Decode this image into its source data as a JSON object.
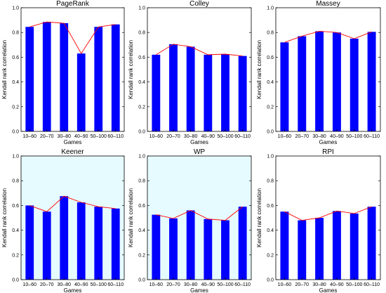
{
  "chart_data": [
    {
      "type": "bar",
      "title": "PageRank",
      "xlabel": "Games",
      "ylabel": "Kendall rank correlation",
      "ylim": [
        0,
        1.0
      ],
      "yticks": [
        "0.0",
        "0.2",
        "0.4",
        "0.6",
        "0.8",
        "1.0"
      ],
      "categories": [
        "10–60",
        "20–70",
        "30–80",
        "40–90",
        "50–100",
        "60–110"
      ],
      "values": [
        0.845,
        0.885,
        0.875,
        0.63,
        0.845,
        0.865
      ],
      "bar_color": "#0000ff",
      "line_color": "#ff0000",
      "gap_color": "#ffffff"
    },
    {
      "type": "bar",
      "title": "Colley",
      "xlabel": "Games",
      "ylabel": "Kendall rank correlation",
      "ylim": [
        0,
        1.0
      ],
      "yticks": [
        "0.0",
        "0.2",
        "0.4",
        "0.6",
        "0.8",
        "1.0"
      ],
      "categories": [
        "10–60",
        "20–70",
        "30–80",
        "40–90",
        "50–100",
        "60–110"
      ],
      "values": [
        0.62,
        0.705,
        0.685,
        0.62,
        0.625,
        0.61
      ],
      "bar_color": "#0000ff",
      "line_color": "#ff0000",
      "gap_color": "#ffffff"
    },
    {
      "type": "bar",
      "title": "Massey",
      "xlabel": "Games",
      "ylabel": "Kendall rank correlation",
      "ylim": [
        0,
        1.0
      ],
      "yticks": [
        "0.0",
        "0.2",
        "0.4",
        "0.6",
        "0.8",
        "1.0"
      ],
      "categories": [
        "10–60",
        "20–70",
        "30–80",
        "40–90",
        "50–100",
        "60–110"
      ],
      "values": [
        0.72,
        0.77,
        0.81,
        0.8,
        0.75,
        0.805
      ],
      "bar_color": "#0000ff",
      "line_color": "#ff0000",
      "gap_color": "#ffffff"
    },
    {
      "type": "bar",
      "title": "Keener",
      "xlabel": "Games",
      "ylabel": "Kendall rank correlation",
      "ylim": [
        0,
        1.0
      ],
      "yticks": [
        "0.0",
        "0.2",
        "0.4",
        "0.6",
        "0.8",
        "1.0"
      ],
      "categories": [
        "10–60",
        "20–70",
        "30–80",
        "40–90",
        "50–100",
        "60–110"
      ],
      "values": [
        0.6,
        0.55,
        0.675,
        0.625,
        0.59,
        0.575
      ],
      "bar_color": "#0000ff",
      "line_color": "#ff0000",
      "gap_color": "#e6fbff"
    },
    {
      "type": "bar",
      "title": "WP",
      "xlabel": "Games",
      "ylabel": "Kendall rank correlation",
      "ylim": [
        0,
        1.0
      ],
      "yticks": [
        "0.0",
        "0.2",
        "0.4",
        "0.6",
        "0.8",
        "1.0"
      ],
      "categories": [
        "10–60",
        "20–70",
        "30–80",
        "40–90",
        "50–100",
        "60–110"
      ],
      "values": [
        0.525,
        0.495,
        0.56,
        0.49,
        0.48,
        0.59
      ],
      "bar_color": "#0000ff",
      "line_color": "#ff0000",
      "gap_color": "#e6fbff"
    },
    {
      "type": "bar",
      "title": "RPI",
      "xlabel": "Games",
      "ylabel": "Kendall rank correlation",
      "ylim": [
        0,
        1.0
      ],
      "yticks": [
        "0.0",
        "0.2",
        "0.4",
        "0.6",
        "0.8",
        "1.0"
      ],
      "categories": [
        "10–60",
        "20–70",
        "30–80",
        "40–90",
        "50–100",
        "60–110"
      ],
      "values": [
        0.55,
        0.48,
        0.5,
        0.555,
        0.535,
        0.59
      ],
      "bar_color": "#0000ff",
      "line_color": "#ff0000",
      "gap_color": "#ffffff"
    }
  ]
}
